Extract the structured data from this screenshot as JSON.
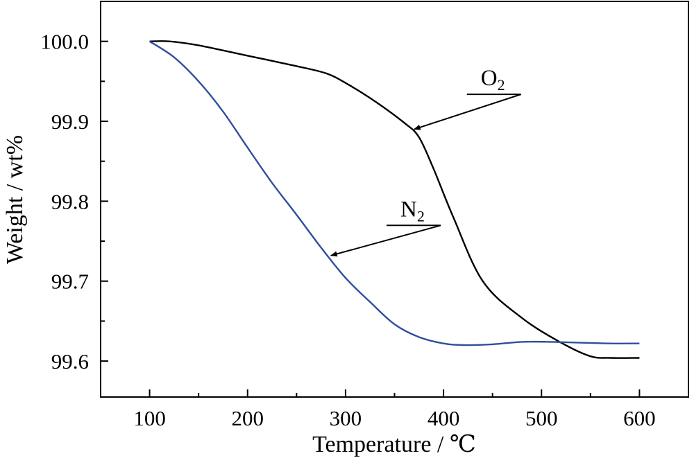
{
  "chart_data": {
    "type": "line",
    "xlabel": "Temperature / ℃",
    "ylabel": "Weight / wt%",
    "xlim": [
      50,
      650
    ],
    "ylim": [
      99.555,
      100.05
    ],
    "xticks": [
      100,
      200,
      300,
      400,
      500,
      600
    ],
    "xtick_labels": [
      "100",
      "200",
      "300",
      "400",
      "500",
      "600"
    ],
    "yticks": [
      99.6,
      99.7,
      99.8,
      99.9,
      100.0
    ],
    "ytick_labels": [
      "99.6",
      "99.7",
      "99.8",
      "99.9",
      "100.0"
    ],
    "grid": false,
    "series": [
      {
        "name": "O2",
        "color": "#000000",
        "x": [
          100,
          120,
          150,
          200,
          250,
          280,
          300,
          330,
          360,
          375,
          390,
          410,
          440,
          480,
          520,
          550,
          570,
          600
        ],
        "y": [
          100.0,
          100.0,
          99.995,
          99.982,
          99.969,
          99.96,
          99.948,
          99.925,
          99.898,
          99.88,
          99.84,
          99.78,
          99.7,
          99.654,
          99.623,
          99.606,
          99.604,
          99.604
        ]
      },
      {
        "name": "N2",
        "color": "#2e4f9c",
        "x": [
          100,
          125,
          150,
          175,
          200,
          225,
          250,
          275,
          300,
          325,
          350,
          375,
          400,
          420,
          450,
          480,
          510,
          540,
          570,
          600
        ],
        "y": [
          100.0,
          99.98,
          99.95,
          99.912,
          99.867,
          99.823,
          99.783,
          99.742,
          99.704,
          99.674,
          99.646,
          99.63,
          99.622,
          99.62,
          99.621,
          99.624,
          99.624,
          99.623,
          99.622,
          99.622
        ]
      }
    ],
    "annotations": [
      {
        "label": "O",
        "sub": "2",
        "series": "O2",
        "arrow_to": [
          370,
          99.89
        ],
        "text_at": [
          438,
          99.945
        ]
      },
      {
        "label": "N",
        "sub": "2",
        "series": "N2",
        "arrow_to": [
          285,
          99.732
        ],
        "text_at": [
          356,
          99.781
        ]
      }
    ]
  }
}
